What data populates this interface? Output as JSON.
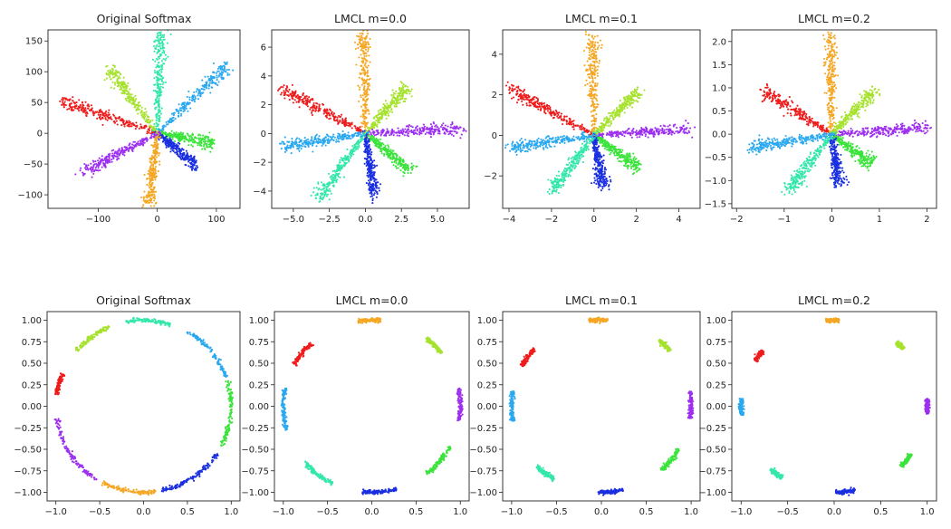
{
  "chart_data": [
    {
      "type": "scatter",
      "row": "top",
      "title": "Original Softmax",
      "xticks": [
        -100,
        0,
        100
      ],
      "xtick_labels": [
        "−100",
        "0",
        "100"
      ],
      "yticks": [
        150,
        100,
        50,
        0,
        -50,
        -100
      ],
      "ytick_labels": [
        "150",
        "100",
        "50",
        "0",
        "−50",
        "−100"
      ],
      "xlim": [
        -185,
        140
      ],
      "ylim": [
        -122,
        168
      ],
      "series": [
        {
          "name": "red",
          "color": "#ee1c1c",
          "angle_deg": 162,
          "length": 170
        },
        {
          "name": "light-green",
          "color": "#a6e22e",
          "angle_deg": 128,
          "length": 130
        },
        {
          "name": "teal",
          "color": "#33e7aa",
          "angle_deg": 88,
          "length": 160
        },
        {
          "name": "sky-blue",
          "color": "#2aa8f0",
          "angle_deg": 43,
          "length": 160
        },
        {
          "name": "green",
          "color": "#3be33b",
          "angle_deg": -10,
          "length": 95
        },
        {
          "name": "blue",
          "color": "#1a2fe0",
          "angle_deg": -38,
          "length": 85
        },
        {
          "name": "orange",
          "color": "#f5a623",
          "angle_deg": -97,
          "length": 115
        },
        {
          "name": "purple",
          "color": "#9d2ff0",
          "angle_deg": -153,
          "length": 140
        }
      ]
    },
    {
      "type": "scatter",
      "row": "top",
      "title": "LMCL m=0.0",
      "xticks": [
        -5.0,
        -2.5,
        0.0,
        2.5,
        5.0
      ],
      "xtick_labels": [
        "−5.0",
        "−2.5",
        "0.0",
        "2.5",
        "5.0"
      ],
      "yticks": [
        6,
        4,
        2,
        0,
        -2,
        -4
      ],
      "ytick_labels": [
        "6",
        "4",
        "2",
        "0",
        "−2",
        "−4"
      ],
      "xlim": [
        -6.5,
        7.2
      ],
      "ylim": [
        -5.2,
        7.2
      ],
      "series": [
        {
          "name": "red",
          "color": "#ee1c1c",
          "angle_deg": 152,
          "length": 6.6
        },
        {
          "name": "orange",
          "color": "#f5a623",
          "angle_deg": 91,
          "length": 6.9
        },
        {
          "name": "light-green",
          "color": "#a6e22e",
          "angle_deg": 48,
          "length": 4.3
        },
        {
          "name": "purple",
          "color": "#9d2ff0",
          "angle_deg": 3,
          "length": 6.8
        },
        {
          "name": "green",
          "color": "#3be33b",
          "angle_deg": -40,
          "length": 4.0
        },
        {
          "name": "blue",
          "color": "#1a2fe0",
          "angle_deg": -82,
          "length": 4.5
        },
        {
          "name": "teal",
          "color": "#33e7aa",
          "angle_deg": -126,
          "length": 5.6
        },
        {
          "name": "sky-blue",
          "color": "#2aa8f0",
          "angle_deg": -171,
          "length": 5.9
        }
      ]
    },
    {
      "type": "scatter",
      "row": "top",
      "title": "LMCL m=0.1",
      "xticks": [
        -4,
        -2,
        0,
        2,
        4
      ],
      "xtick_labels": [
        "−4",
        "−2",
        "0",
        "2",
        "4"
      ],
      "yticks": [
        4,
        2,
        0,
        -2
      ],
      "ytick_labels": [
        "4",
        "2",
        "0",
        "−2"
      ],
      "xlim": [
        -4.3,
        5.0
      ],
      "ylim": [
        -3.6,
        5.2
      ],
      "series": [
        {
          "name": "red",
          "color": "#ee1c1c",
          "angle_deg": 150,
          "length": 4.6
        },
        {
          "name": "orange",
          "color": "#f5a623",
          "angle_deg": 91,
          "length": 4.9
        },
        {
          "name": "light-green",
          "color": "#a6e22e",
          "angle_deg": 46,
          "length": 3.0
        },
        {
          "name": "purple",
          "color": "#9d2ff0",
          "angle_deg": 4,
          "length": 4.5
        },
        {
          "name": "green",
          "color": "#3be33b",
          "angle_deg": -38,
          "length": 2.6
        },
        {
          "name": "blue",
          "color": "#1a2fe0",
          "angle_deg": -80,
          "length": 2.6
        },
        {
          "name": "teal",
          "color": "#33e7aa",
          "angle_deg": -126,
          "length": 3.3
        },
        {
          "name": "sky-blue",
          "color": "#2aa8f0",
          "angle_deg": -171,
          "length": 4.0
        }
      ]
    },
    {
      "type": "scatter",
      "row": "top",
      "title": "LMCL m=0.2",
      "xticks": [
        -2,
        -1,
        0,
        1,
        2
      ],
      "xtick_labels": [
        "−2",
        "−1",
        "0",
        "1",
        "2"
      ],
      "yticks": [
        2.0,
        1.5,
        1.0,
        0.5,
        0.0,
        -0.5,
        -1.0,
        -1.5
      ],
      "ytick_labels": [
        "2.0",
        "1.5",
        "1.0",
        "0.5",
        "0.0",
        "−0.5",
        "−1.0",
        "−1.5"
      ],
      "xlim": [
        -2.1,
        2.2
      ],
      "ylim": [
        -1.6,
        2.25
      ],
      "series": [
        {
          "name": "red",
          "color": "#ee1c1c",
          "angle_deg": 147,
          "length": 1.75
        },
        {
          "name": "orange",
          "color": "#f5a623",
          "angle_deg": 91,
          "length": 2.1
        },
        {
          "name": "light-green",
          "color": "#a6e22e",
          "angle_deg": 46,
          "length": 1.3
        },
        {
          "name": "purple",
          "color": "#9d2ff0",
          "angle_deg": 4,
          "length": 2.0
        },
        {
          "name": "green",
          "color": "#3be33b",
          "angle_deg": -38,
          "length": 1.05
        },
        {
          "name": "blue",
          "color": "#1a2fe0",
          "angle_deg": -82,
          "length": 1.1
        },
        {
          "name": "teal",
          "color": "#33e7aa",
          "angle_deg": -127,
          "length": 1.5
        },
        {
          "name": "sky-blue",
          "color": "#2aa8f0",
          "angle_deg": -170,
          "length": 1.75
        }
      ]
    },
    {
      "type": "scatter",
      "row": "bottom",
      "title": "Original Softmax",
      "xticks": [
        -1.0,
        -0.5,
        0.0,
        0.5,
        1.0
      ],
      "xtick_labels": [
        "−1.0",
        "−0.5",
        "0.0",
        "0.5",
        "1.0"
      ],
      "yticks": [
        1.0,
        0.75,
        0.5,
        0.25,
        0.0,
        -0.25,
        -0.5,
        -0.75,
        -1.0
      ],
      "ytick_labels": [
        "1.00",
        "0.75",
        "0.50",
        "0.25",
        "0.00",
        "−0.25",
        "−0.50",
        "−0.75",
        "−1.00"
      ],
      "xlim": [
        -1.1,
        1.1
      ],
      "ylim": [
        -1.1,
        1.1
      ],
      "arcs": [
        {
          "name": "red",
          "color": "#ee1c1c",
          "start_deg": 158,
          "end_deg": 172
        },
        {
          "name": "light-green",
          "color": "#a6e22e",
          "start_deg": 113,
          "end_deg": 140
        },
        {
          "name": "teal",
          "color": "#33e7aa",
          "start_deg": 72,
          "end_deg": 102
        },
        {
          "name": "sky-blue",
          "color": "#2aa8f0",
          "start_deg": 20,
          "end_deg": 60
        },
        {
          "name": "green",
          "color": "#3be33b",
          "start_deg": -28,
          "end_deg": 18
        },
        {
          "name": "blue",
          "color": "#1a2fe0",
          "start_deg": -78,
          "end_deg": -33
        },
        {
          "name": "orange",
          "color": "#f5a623",
          "start_deg": -118,
          "end_deg": -82
        },
        {
          "name": "purple",
          "color": "#9d2ff0",
          "start_deg": -172,
          "end_deg": -122
        }
      ]
    },
    {
      "type": "scatter",
      "row": "bottom",
      "title": "LMCL m=0.0",
      "xticks": [
        -1.0,
        -0.5,
        0.0,
        0.5,
        1.0
      ],
      "xtick_labels": [
        "−1.0",
        "−0.5",
        "0.0",
        "0.5",
        "1.0"
      ],
      "yticks": [
        1.0,
        0.75,
        0.5,
        0.25,
        0.0,
        -0.25,
        -0.5,
        -0.75,
        -1.0
      ],
      "ytick_labels": [
        "1.00",
        "0.75",
        "0.50",
        "0.25",
        "0.00",
        "−0.25",
        "−0.50",
        "−0.75",
        "−1.00"
      ],
      "xlim": [
        -1.1,
        1.1
      ],
      "ylim": [
        -1.1,
        1.1
      ],
      "arcs": [
        {
          "name": "red",
          "color": "#ee1c1c",
          "start_deg": 133,
          "end_deg": 151
        },
        {
          "name": "orange",
          "color": "#f5a623",
          "start_deg": 84,
          "end_deg": 99
        },
        {
          "name": "light-green",
          "color": "#a6e22e",
          "start_deg": 38,
          "end_deg": 52
        },
        {
          "name": "purple",
          "color": "#9d2ff0",
          "start_deg": -10,
          "end_deg": 12
        },
        {
          "name": "green",
          "color": "#3be33b",
          "start_deg": -52,
          "end_deg": -28
        },
        {
          "name": "blue",
          "color": "#1a2fe0",
          "start_deg": -96,
          "end_deg": -74
        },
        {
          "name": "teal",
          "color": "#33e7aa",
          "start_deg": -140,
          "end_deg": -116
        },
        {
          "name": "sky-blue",
          "color": "#2aa8f0",
          "start_deg": -192,
          "end_deg": -164
        }
      ]
    },
    {
      "type": "scatter",
      "row": "bottom",
      "title": "LMCL m=0.1",
      "xticks": [
        -1.0,
        -0.5,
        0.0,
        0.5,
        1.0
      ],
      "xtick_labels": [
        "−1.0",
        "−0.5",
        "0.0",
        "0.5",
        "1.0"
      ],
      "yticks": [
        1.0,
        0.75,
        0.5,
        0.25,
        0.0,
        -0.25,
        -0.5,
        -0.75,
        -1.0
      ],
      "ytick_labels": [
        "1.00",
        "0.75",
        "0.50",
        "0.25",
        "0.00",
        "−0.25",
        "−0.50",
        "−0.75",
        "−1.00"
      ],
      "xlim": [
        -1.1,
        1.1
      ],
      "ylim": [
        -1.1,
        1.1
      ],
      "arcs": [
        {
          "name": "red",
          "color": "#ee1c1c",
          "start_deg": 138,
          "end_deg": 152
        },
        {
          "name": "orange",
          "color": "#f5a623",
          "start_deg": 86,
          "end_deg": 98
        },
        {
          "name": "light-green",
          "color": "#a6e22e",
          "start_deg": 40,
          "end_deg": 50
        },
        {
          "name": "purple",
          "color": "#9d2ff0",
          "start_deg": -8,
          "end_deg": 10
        },
        {
          "name": "green",
          "color": "#3be33b",
          "start_deg": -48,
          "end_deg": -30
        },
        {
          "name": "blue",
          "color": "#1a2fe0",
          "start_deg": -92,
          "end_deg": -76
        },
        {
          "name": "teal",
          "color": "#33e7aa",
          "start_deg": -136,
          "end_deg": -122
        },
        {
          "name": "sky-blue",
          "color": "#2aa8f0",
          "start_deg": -190,
          "end_deg": -170
        }
      ]
    },
    {
      "type": "scatter",
      "row": "bottom",
      "title": "LMCL m=0.2",
      "xticks": [
        -1.0,
        -0.5,
        0.0,
        0.5,
        1.0
      ],
      "xtick_labels": [
        "−1.0",
        "−0.5",
        "0.0",
        "0.5",
        "1.0"
      ],
      "yticks": [
        1.0,
        0.75,
        0.5,
        0.25,
        0.0,
        -0.25,
        -0.5,
        -0.75,
        -1.0
      ],
      "ytick_labels": [
        "1.00",
        "0.75",
        "0.50",
        "0.25",
        "0.00",
        "−0.25",
        "−0.50",
        "−0.75",
        "−1.00"
      ],
      "xlim": [
        -1.1,
        1.1
      ],
      "ylim": [
        -1.1,
        1.1
      ],
      "arcs": [
        {
          "name": "red",
          "color": "#ee1c1c",
          "start_deg": 140,
          "end_deg": 148
        },
        {
          "name": "orange",
          "color": "#f5a623",
          "start_deg": 87,
          "end_deg": 95
        },
        {
          "name": "light-green",
          "color": "#a6e22e",
          "start_deg": 42,
          "end_deg": 48
        },
        {
          "name": "purple",
          "color": "#9d2ff0",
          "start_deg": -5,
          "end_deg": 5
        },
        {
          "name": "green",
          "color": "#3be33b",
          "start_deg": -44,
          "end_deg": -34
        },
        {
          "name": "blue",
          "color": "#1a2fe0",
          "start_deg": -89,
          "end_deg": -77
        },
        {
          "name": "teal",
          "color": "#33e7aa",
          "start_deg": -133,
          "end_deg": -124
        },
        {
          "name": "sky-blue",
          "color": "#2aa8f0",
          "start_deg": -185,
          "end_deg": -174
        }
      ]
    }
  ]
}
